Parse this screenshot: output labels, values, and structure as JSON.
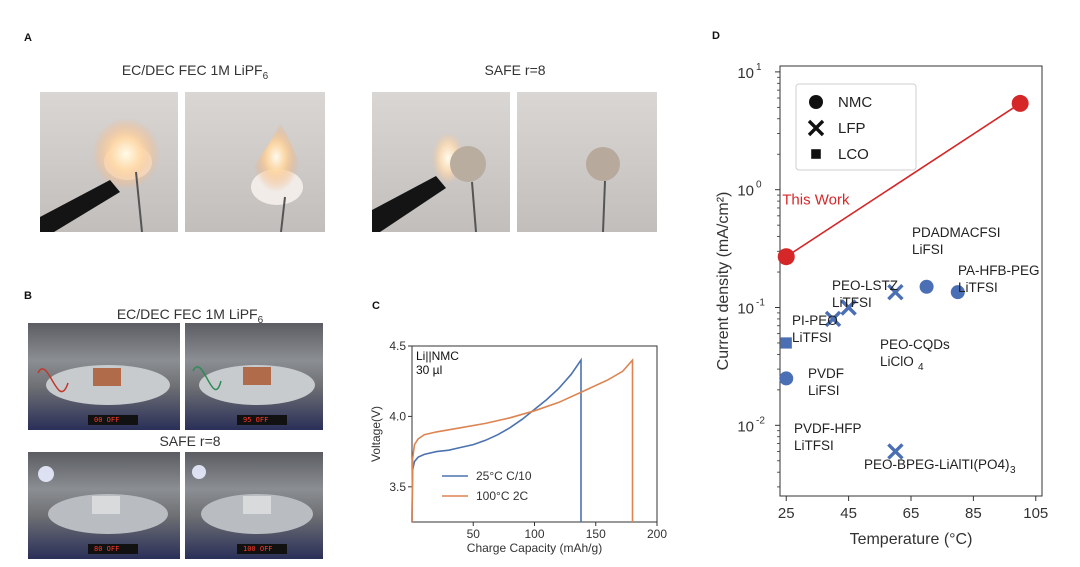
{
  "panel_a": {
    "label": "A",
    "title_left": "EC/DEC FEC 1M LiPF",
    "title_left_sub": "6",
    "title_right": "SAFE r=8"
  },
  "panel_b": {
    "label": "B",
    "title_top": "EC/DEC FEC 1M LiPF",
    "title_top_sub": "6",
    "title_bottom": "SAFE r=8",
    "display_1": "00 OFF",
    "display_2": "95 OFF",
    "display_3": "80 OFF",
    "display_4": "100 OFF"
  },
  "panel_c": {
    "label": "C",
    "annotation_line1": "Li||NMC",
    "annotation_line2": "30 µl"
  },
  "panel_d": {
    "label": "D",
    "legend": [
      "NMC",
      "LFP",
      "LCO"
    ],
    "this_work_label": "This Work",
    "ylabel": "Current density (mA/cm²)",
    "xlabel": "Temperature (°C)"
  },
  "colors": {
    "blue": "#4c72b0",
    "orange": "#dd8452",
    "red": "#d62728",
    "marker_blue": "#4a6fb5"
  },
  "chart_data": [
    {
      "id": "C",
      "type": "line",
      "xlabel": "Charge Capacity (mAh/g)",
      "ylabel": "Voltage(V)",
      "xlim": [
        0,
        200
      ],
      "ylim": [
        3.25,
        4.5
      ],
      "xticks": [
        50,
        100,
        150,
        200
      ],
      "yticks": [
        3.5,
        4.0,
        4.5
      ],
      "series": [
        {
          "name": "25°C C/10",
          "color": "#4c72b0",
          "x": [
            0,
            0.5,
            2,
            5,
            10,
            20,
            30,
            40,
            50,
            60,
            70,
            80,
            90,
            100,
            110,
            120,
            130,
            138,
            138,
            138
          ],
          "y": [
            3.25,
            3.62,
            3.68,
            3.71,
            3.73,
            3.75,
            3.76,
            3.78,
            3.8,
            3.83,
            3.87,
            3.92,
            3.98,
            4.05,
            4.12,
            4.2,
            4.3,
            4.4,
            4.0,
            3.25
          ]
        },
        {
          "name": "100°C 2C",
          "color": "#dd8452",
          "x": [
            0,
            0.5,
            2,
            5,
            10,
            20,
            40,
            60,
            80,
            100,
            120,
            140,
            160,
            172,
            180,
            180
          ],
          "y": [
            3.25,
            3.7,
            3.8,
            3.84,
            3.87,
            3.89,
            3.92,
            3.95,
            3.99,
            4.04,
            4.1,
            4.18,
            4.26,
            4.32,
            4.4,
            3.25
          ]
        }
      ]
    },
    {
      "id": "D",
      "type": "scatter",
      "xlabel": "Temperature (°C)",
      "ylabel": "Current density (mA/cm²)",
      "xlim": [
        23,
        107
      ],
      "ylim_log10": [
        -2.6,
        1.05
      ],
      "xticks": [
        25,
        45,
        65,
        85,
        105
      ],
      "yticks_log10": [
        -2,
        -1,
        0,
        1
      ],
      "this_work_line": {
        "x": [
          25,
          100
        ],
        "y": [
          0.27,
          5.4
        ]
      },
      "points": [
        {
          "x": 25,
          "y": 0.27,
          "marker": "circle",
          "color": "#d62728",
          "label": ""
        },
        {
          "x": 100,
          "y": 5.4,
          "marker": "circle",
          "color": "#d62728",
          "label": ""
        },
        {
          "x": 70,
          "y": 0.15,
          "marker": "circle",
          "color": "#4a6fb5",
          "label": "PDADMACFSI LiFSI"
        },
        {
          "x": 80,
          "y": 0.135,
          "marker": "circle",
          "color": "#4a6fb5",
          "label": "PA-HFB-PEG LiTFSI"
        },
        {
          "x": 45,
          "y": 0.1,
          "marker": "x",
          "color": "#4a6fb5",
          "label": "PEO-LSTZ LiTFSI"
        },
        {
          "x": 40,
          "y": 0.08,
          "marker": "x",
          "color": "#4a6fb5",
          "label": "PI-PEO LiTFSI"
        },
        {
          "x": 60,
          "y": 0.135,
          "marker": "x",
          "color": "#4a6fb5",
          "label": "PEO-CQDs LiClO4"
        },
        {
          "x": 25,
          "y": 0.05,
          "marker": "square",
          "color": "#4a6fb5",
          "label": "PVDF LiFSI"
        },
        {
          "x": 25,
          "y": 0.025,
          "marker": "circle",
          "color": "#4a6fb5",
          "label": "PVDF-HFP LiTFSI"
        },
        {
          "x": 60,
          "y": 0.006,
          "marker": "x",
          "color": "#4a6fb5",
          "label": "PEO-BPEG-LiAlTI(PO4)3"
        }
      ]
    }
  ]
}
